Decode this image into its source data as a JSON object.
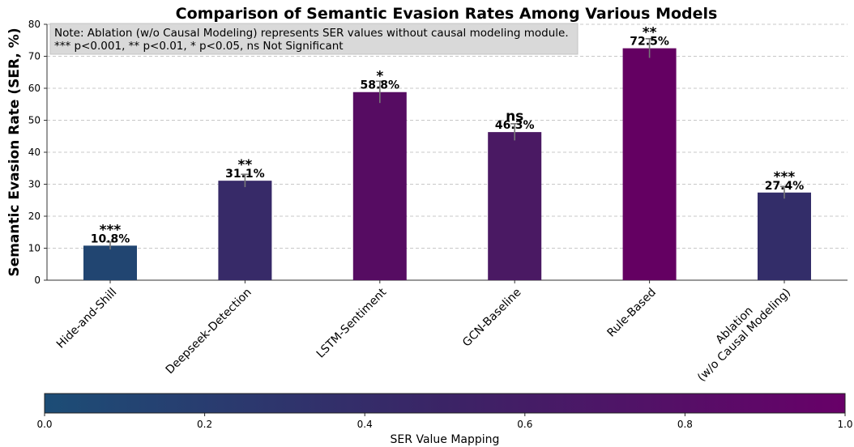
{
  "chart_data": {
    "type": "bar",
    "title": "Comparison of Semantic Evasion Rates Among Various Models",
    "ylabel": "Semantic Evasion Rate (SER, %)",
    "xlabel": "",
    "ylim": [
      0,
      80
    ],
    "yticks": [
      "0",
      "10",
      "20",
      "30",
      "40",
      "50",
      "60",
      "70",
      "80"
    ],
    "grid": true,
    "categories": [
      "Hide-and-Shill",
      "Deepseek-Detection",
      "LSTM-Sentiment",
      "GCN-Baseline",
      "Rule-Based",
      "Ablation\n(w/o Causal Modeling)"
    ],
    "values": [
      10.8,
      31.1,
      58.8,
      46.3,
      72.5,
      27.4
    ],
    "errors": [
      1.2,
      2.0,
      3.4,
      2.6,
      3.0,
      1.9
    ],
    "value_labels": [
      "10.8%",
      "31.1%",
      "58.8%",
      "46.3%",
      "72.5%",
      "27.4%"
    ],
    "significance": [
      "***",
      "**",
      "*",
      "ns",
      "**",
      "***"
    ],
    "bar_colors": [
      "#214571",
      "#372a68",
      "#560c62",
      "#4a1963",
      "#640062",
      "#332d69"
    ],
    "note_lines": [
      "Note: Ablation (w/o Causal Modeling) represents SER values without causal modeling module.",
      "*** p<0.001, ** p<0.01, * p<0.05, ns Not Significant"
    ],
    "colorbar": {
      "label": "SER Value Mapping",
      "ticks": [
        "0.0",
        "0.2",
        "0.4",
        "0.6",
        "0.8",
        "1.0"
      ],
      "range": [
        0,
        1
      ],
      "colors": [
        "#1c4d76",
        "#3b2466",
        "#680068"
      ]
    }
  }
}
